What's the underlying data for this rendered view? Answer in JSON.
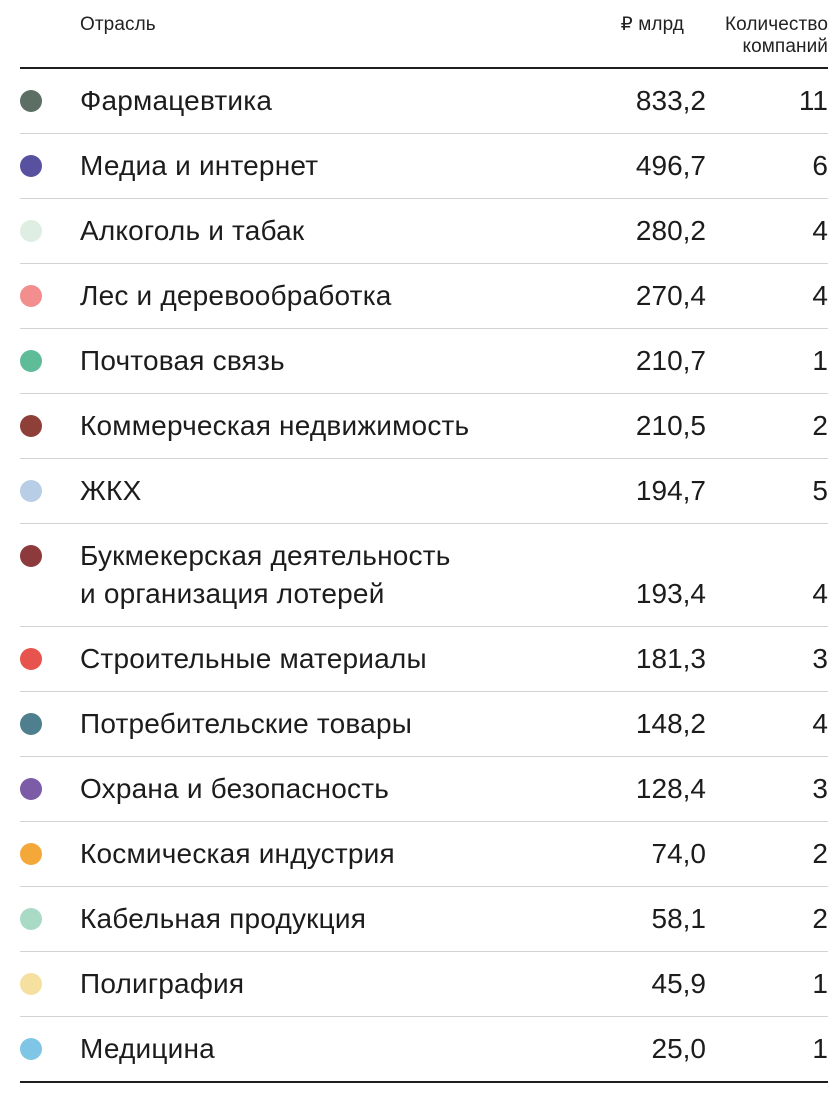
{
  "header": {
    "industry": "Отрасль",
    "value": "₽ млрд",
    "count": "Количество компаний"
  },
  "rows": [
    {
      "industry": "Фармацевтика",
      "value": "833,2",
      "count": "11",
      "color": "#5d6f64"
    },
    {
      "industry": "Медиа и интернет",
      "value": "496,7",
      "count": "6",
      "color": "#5851a0"
    },
    {
      "industry": "Алкоголь и табак",
      "value": "280,2",
      "count": "4",
      "color": "#dfeee3"
    },
    {
      "industry": "Лес и деревообработка",
      "value": "270,4",
      "count": "4",
      "color": "#f28e8e"
    },
    {
      "industry": "Почтовая связь",
      "value": "210,7",
      "count": "1",
      "color": "#5fbc98"
    },
    {
      "industry": "Коммерческая недвижимость",
      "value": "210,5",
      "count": "2",
      "color": "#8e4038"
    },
    {
      "industry": "ЖКХ",
      "value": "194,7",
      "count": "5",
      "color": "#b8cde6"
    },
    {
      "industry": "Букмекерская деятельность и организация лотерей",
      "value": "193,4",
      "count": "4",
      "color": "#8c3a3c"
    },
    {
      "industry": "Строительные материалы",
      "value": "181,3",
      "count": "3",
      "color": "#e7534d"
    },
    {
      "industry": "Потребительские товары",
      "value": "148,2",
      "count": "4",
      "color": "#4f7f8e"
    },
    {
      "industry": "Охрана и безопасность",
      "value": "128,4",
      "count": "3",
      "color": "#7c5ca6"
    },
    {
      "industry": "Космическая индустрия",
      "value": "74,0",
      "count": "2",
      "color": "#f4a83a"
    },
    {
      "industry": "Кабельная продукция",
      "value": "58,1",
      "count": "2",
      "color": "#a9dac6"
    },
    {
      "industry": "Полиграфия",
      "value": "45,9",
      "count": "1",
      "color": "#f6e0a0"
    },
    {
      "industry": "Медицина",
      "value": "25,0",
      "count": "1",
      "color": "#7fc6e6"
    }
  ],
  "chart_data": {
    "type": "table",
    "title": "",
    "columns": [
      "Отрасль",
      "₽ млрд",
      "Количество компаний"
    ],
    "rows": [
      [
        "Фармацевтика",
        833.2,
        11
      ],
      [
        "Медиа и интернет",
        496.7,
        6
      ],
      [
        "Алкоголь и табак",
        280.2,
        4
      ],
      [
        "Лес и деревообработка",
        270.4,
        4
      ],
      [
        "Почтовая связь",
        210.7,
        1
      ],
      [
        "Коммерческая недвижимость",
        210.5,
        2
      ],
      [
        "ЖКХ",
        194.7,
        5
      ],
      [
        "Букмекерская деятельность и организация лотерей",
        193.4,
        4
      ],
      [
        "Строительные материалы",
        181.3,
        3
      ],
      [
        "Потребительские товары",
        148.2,
        4
      ],
      [
        "Охрана и безопасность",
        128.4,
        3
      ],
      [
        "Космическая индустрия",
        74.0,
        2
      ],
      [
        "Кабельная продукция",
        58.1,
        2
      ],
      [
        "Полиграфия",
        45.9,
        1
      ],
      [
        "Медицина",
        25.0,
        1
      ]
    ],
    "row_dot_colors": [
      "#5d6f64",
      "#5851a0",
      "#dfeee3",
      "#f28e8e",
      "#5fbc98",
      "#8e4038",
      "#b8cde6",
      "#8c3a3c",
      "#e7534d",
      "#4f7f8e",
      "#7c5ca6",
      "#f4a83a",
      "#a9dac6",
      "#f6e0a0",
      "#7fc6e6"
    ],
    "value_decimal_separator": ",",
    "legend_position": "none",
    "grid": "horizontal-row-separators"
  }
}
